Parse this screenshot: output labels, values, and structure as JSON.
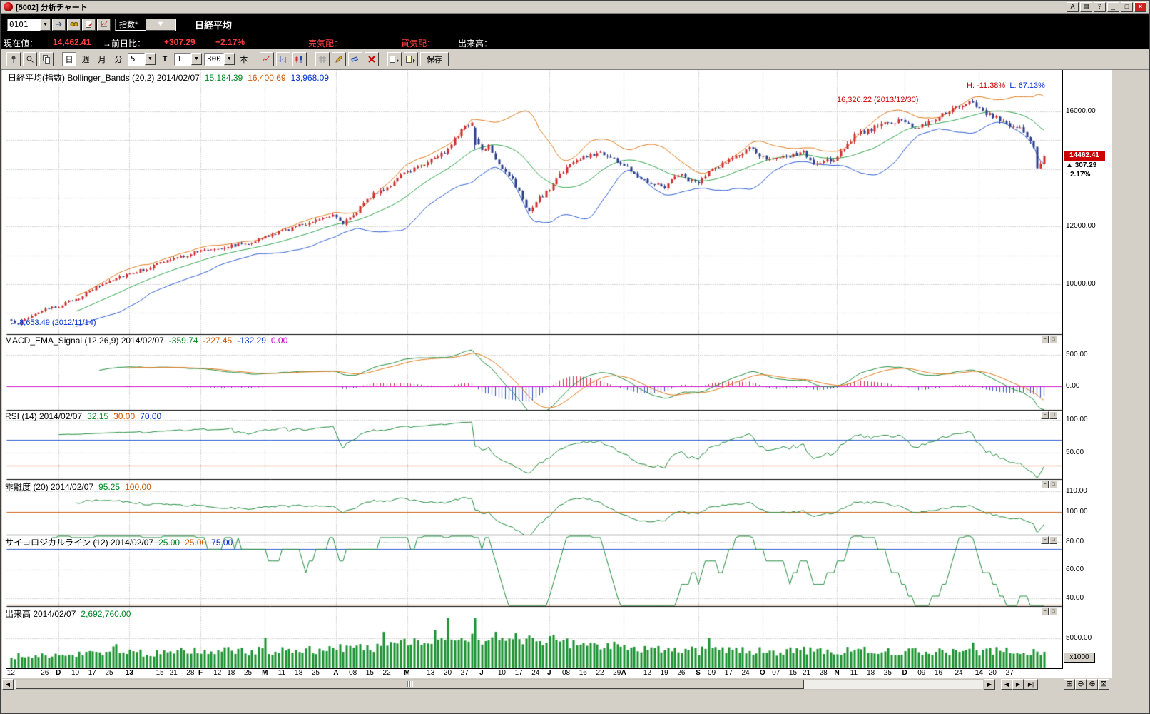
{
  "window": {
    "title": "[5002]  分析チャート",
    "buttons": {
      "font": "A",
      "book": "▤",
      "help": "?",
      "min": "_",
      "max": "□",
      "close": "×"
    }
  },
  "quote": {
    "code": "0101",
    "category": "指数*",
    "name": "日経平均",
    "dropdown_arrow": "▼"
  },
  "price_bar": {
    "label_now": "現在値：",
    "now": "14,462.41",
    "label_chg": "→前日比：",
    "chg": "+307.29",
    "chg_pct": "+2.17%",
    "label_ask": "売気配：",
    "label_bid": "買気配：",
    "label_vol": "出来高："
  },
  "toolbar": {
    "day": "日",
    "week": "週",
    "month": "月",
    "minute": "分",
    "minute_value": "5",
    "t_label": "T",
    "t_value": "1",
    "bars_value": "300",
    "unit": "本",
    "save": "保存",
    "arrow": "▼"
  },
  "panels": {
    "main": {
      "title": "日経平均(指数) Bollinger_Bands (20,2) 2014/02/07",
      "sma": "15,184.39",
      "upper": "16,400.69",
      "lower": "13,968.09",
      "high_pct": "H: -11.38%",
      "low_pct": "L: 67.13%",
      "peak_note": "16,320.22 (2013/12/30)",
      "low_arrow": "←",
      "low_note": "8,653.49 (2012/11/14)",
      "axis": [
        "16000.00",
        "12000.00",
        "10000.00"
      ],
      "tag_price": "14462.41",
      "tag_arrow": "▲",
      "tag_chg": "307.29",
      "tag_pct": "2.17%"
    },
    "macd": {
      "title": "MACD_EMA_Signal (12,26,9) 2014/02/07",
      "v1": "-359.74",
      "v2": "-227.45",
      "v3": "-132.29",
      "v4": "0.00",
      "axis": [
        "500.00",
        "0.00"
      ]
    },
    "rsi": {
      "title": "RSI (14) 2014/02/07",
      "v1": "32.15",
      "v2": "30.00",
      "v3": "70.00",
      "axis": [
        "100.00",
        "50.00"
      ]
    },
    "kairi": {
      "title": "乖離度 (20) 2014/02/07",
      "v1": "95.25",
      "v2": "100.00",
      "axis": [
        "110.00",
        "100.00"
      ]
    },
    "psych": {
      "title": "サイコロジカルライン (12) 2014/02/07",
      "v1": "25.00",
      "v2": "25.00",
      "v3": "75.00",
      "axis": [
        "80.00",
        "60.00",
        "40.00"
      ]
    },
    "volume": {
      "title": "出来高 2014/02/07",
      "v1": "2,692,760.00",
      "axis": [
        "5000.00"
      ],
      "unit": "x1000"
    }
  },
  "panel_btns": {
    "min": "−",
    "max": "□"
  },
  "nav": {
    "left": "◀",
    "right": "▶",
    "prev": "◀",
    "next": "▶",
    "end": "▶|",
    "grid": "⊞",
    "zoom_out": "⊖",
    "zoom_in": "⊕",
    "close": "⊠"
  },
  "chart_data": {
    "type": "candlestick-multi-panel",
    "symbol": "日経平均",
    "date": "2014/02/07",
    "bars": 306,
    "last_close": 14462.41,
    "price_anchors": [
      [
        0,
        8750
      ],
      [
        2,
        8653.49
      ],
      [
        8,
        9050
      ],
      [
        14,
        9250
      ],
      [
        20,
        9550
      ],
      [
        25,
        9900
      ],
      [
        30,
        10200
      ],
      [
        35,
        10395
      ],
      [
        40,
        10550
      ],
      [
        45,
        10800
      ],
      [
        50,
        10950
      ],
      [
        55,
        11150
      ],
      [
        60,
        11250
      ],
      [
        65,
        11350
      ],
      [
        70,
        11450
      ],
      [
        74,
        11600
      ],
      [
        80,
        11850
      ],
      [
        85,
        12050
      ],
      [
        90,
        12250
      ],
      [
        95,
        12450
      ],
      [
        98,
        12150
      ],
      [
        101,
        12350
      ],
      [
        104,
        12900
      ],
      [
        108,
        13200
      ],
      [
        112,
        13450
      ],
      [
        116,
        13850
      ],
      [
        120,
        14100
      ],
      [
        124,
        14350
      ],
      [
        128,
        14600
      ],
      [
        131,
        15100
      ],
      [
        134,
        15450
      ],
      [
        136,
        15650
      ],
      [
        137,
        15050
      ],
      [
        139,
        14700
      ],
      [
        141,
        14850
      ],
      [
        144,
        14200
      ],
      [
        147,
        13800
      ],
      [
        150,
        13200
      ],
      [
        153,
        12500
      ],
      [
        156,
        13000
      ],
      [
        159,
        13300
      ],
      [
        162,
        13850
      ],
      [
        166,
        14250
      ],
      [
        170,
        14450
      ],
      [
        174,
        14600
      ],
      [
        178,
        14350
      ],
      [
        182,
        14050
      ],
      [
        186,
        13700
      ],
      [
        190,
        13500
      ],
      [
        193,
        13400
      ],
      [
        197,
        13850
      ],
      [
        200,
        13650
      ],
      [
        203,
        13500
      ],
      [
        206,
        13900
      ],
      [
        210,
        14200
      ],
      [
        214,
        14450
      ],
      [
        218,
        14700
      ],
      [
        222,
        14450
      ],
      [
        226,
        14350
      ],
      [
        230,
        14450
      ],
      [
        234,
        14600
      ],
      [
        237,
        14150
      ],
      [
        240,
        14250
      ],
      [
        243,
        14350
      ],
      [
        246,
        14750
      ],
      [
        249,
        15150
      ],
      [
        253,
        15350
      ],
      [
        257,
        15550
      ],
      [
        261,
        15650
      ],
      [
        264,
        15680
      ],
      [
        267,
        15450
      ],
      [
        270,
        15600
      ],
      [
        274,
        15850
      ],
      [
        278,
        16050
      ],
      [
        281,
        16200
      ],
      [
        283,
        16300
      ],
      [
        285,
        16250
      ],
      [
        287,
        16050
      ],
      [
        289,
        15900
      ],
      [
        292,
        15750
      ],
      [
        295,
        15500
      ],
      [
        298,
        15400
      ],
      [
        300,
        15150
      ],
      [
        302,
        14800
      ],
      [
        303,
        14050
      ],
      [
        304,
        14200
      ],
      [
        305,
        14462.41
      ]
    ],
    "low_point": {
      "index": 2,
      "value": 8653.49
    },
    "high_point": {
      "index": 283,
      "value": 16320.22
    },
    "volume_last": 2692.76,
    "month_indices": [
      14,
      35,
      56,
      75,
      96,
      117,
      139,
      159,
      181,
      203,
      222,
      244,
      264,
      286
    ],
    "x_labels": [
      [
        "12",
        0,
        0
      ],
      [
        "26",
        10,
        0
      ],
      [
        "D",
        14,
        1
      ],
      [
        "10",
        19,
        0
      ],
      [
        "17",
        24,
        0
      ],
      [
        "25",
        29,
        0
      ],
      [
        "13",
        35,
        1
      ],
      [
        "15",
        44,
        0
      ],
      [
        "21",
        48,
        0
      ],
      [
        "28",
        53,
        0
      ],
      [
        "F",
        56,
        1
      ],
      [
        "12",
        61,
        0
      ],
      [
        "18",
        65,
        0
      ],
      [
        "25",
        70,
        0
      ],
      [
        "M",
        75,
        1
      ],
      [
        "11",
        80,
        0
      ],
      [
        "18",
        85,
        0
      ],
      [
        "25",
        90,
        0
      ],
      [
        "A",
        96,
        1
      ],
      [
        "08",
        101,
        0
      ],
      [
        "15",
        106,
        0
      ],
      [
        "22",
        111,
        0
      ],
      [
        "M",
        117,
        1
      ],
      [
        "13",
        124,
        0
      ],
      [
        "20",
        129,
        0
      ],
      [
        "27",
        134,
        0
      ],
      [
        "J",
        139,
        1
      ],
      [
        "10",
        145,
        0
      ],
      [
        "17",
        150,
        0
      ],
      [
        "24",
        155,
        0
      ],
      [
        "J",
        159,
        1
      ],
      [
        "08",
        164,
        0
      ],
      [
        "16",
        169,
        0
      ],
      [
        "22",
        174,
        0
      ],
      [
        "29",
        179,
        0
      ],
      [
        "A",
        181,
        1
      ],
      [
        "12",
        188,
        0
      ],
      [
        "19",
        193,
        0
      ],
      [
        "26",
        198,
        0
      ],
      [
        "S",
        203,
        1
      ],
      [
        "09",
        207,
        0
      ],
      [
        "17",
        212,
        0
      ],
      [
        "24",
        217,
        0
      ],
      [
        "O",
        222,
        1
      ],
      [
        "07",
        226,
        0
      ],
      [
        "15",
        231,
        0
      ],
      [
        "21",
        235,
        0
      ],
      [
        "28",
        240,
        0
      ],
      [
        "N",
        244,
        1
      ],
      [
        "11",
        249,
        0
      ],
      [
        "18",
        254,
        0
      ],
      [
        "25",
        259,
        0
      ],
      [
        "D",
        264,
        1
      ],
      [
        "09",
        269,
        0
      ],
      [
        "16",
        274,
        0
      ],
      [
        "24",
        280,
        0
      ],
      [
        "14",
        286,
        1
      ],
      [
        "20",
        290,
        0
      ],
      [
        "27",
        295,
        0
      ]
    ],
    "indicators": {
      "bollinger": {
        "period": 20,
        "sigma": 2,
        "mid": 15184.39,
        "upper": 16400.69,
        "lower": 13968.09
      },
      "macd": {
        "fast": 12,
        "slow": 26,
        "signal": 9,
        "macd": -359.74,
        "signal_v": -227.45,
        "hist": -132.29,
        "zero": 0.0
      },
      "rsi": {
        "period": 14,
        "value": 32.15,
        "low_level": 30,
        "high_level": 70
      },
      "kairi": {
        "period": 20,
        "value": 95.25,
        "level": 100
      },
      "psych": {
        "period": 12,
        "value": 25.0,
        "low_level": 25,
        "high_level": 75
      },
      "volume": {
        "value": 2692760,
        "unit": "x1000",
        "grid": 5000
      }
    },
    "colors": {
      "up": "#cc2e2e",
      "down": "#2b3e8c",
      "bb_mid": "#2ea44a",
      "bb_up": "#e07818",
      "bb_dn": "#2a5ad0",
      "macd": "#1f8a3c",
      "signal": "#e07818",
      "hist_up": "#cc3344",
      "hist_dn": "#3a50c0",
      "zero": "#d015d0",
      "ind": "#1f8a3c",
      "level_hi": "#2a5ad0",
      "level_lo": "#d06010",
      "vol": "#19912f",
      "grid": "#a9a9a9"
    }
  }
}
